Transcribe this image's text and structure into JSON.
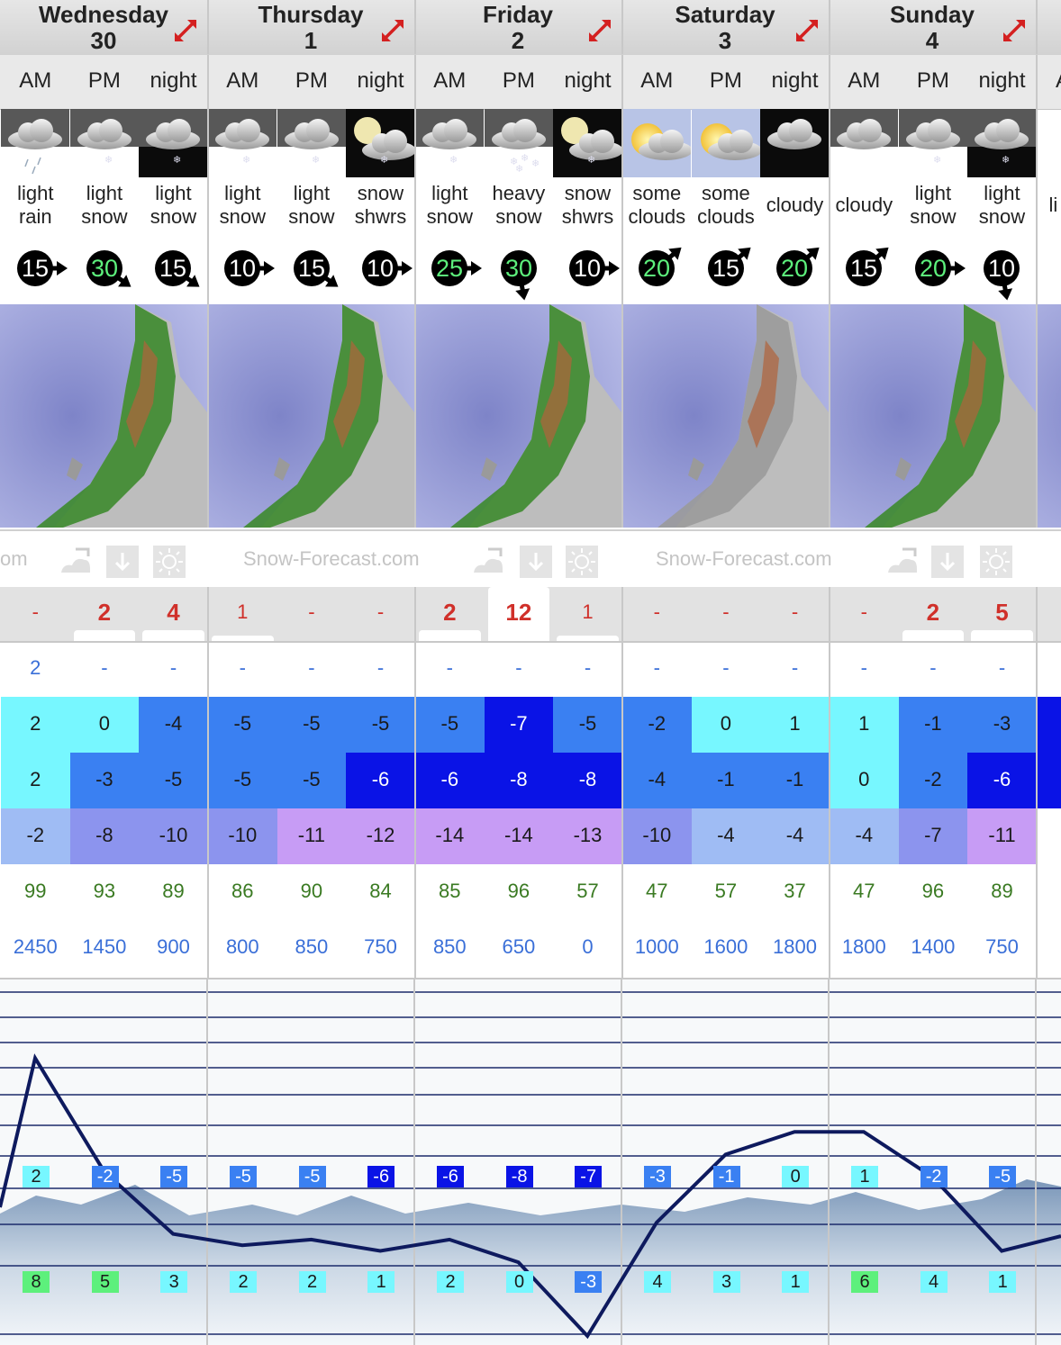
{
  "days": [
    {
      "name": "Wednesday",
      "date": "30",
      "x": 0
    },
    {
      "name": "Thursday",
      "date": "1"
    },
    {
      "name": "Friday",
      "date": "2"
    },
    {
      "name": "Saturday",
      "date": "3"
    },
    {
      "name": "Sunday",
      "date": "4"
    }
  ],
  "partial_day": {
    "period": "A",
    "summary": "li s"
  },
  "periods": [
    {
      "label": "AM",
      "icon": "light-rain-icon",
      "sky": "cloud",
      "summary": [
        "light",
        "rain"
      ],
      "wind_speed": "15",
      "wind_dir": "east",
      "wind_color": "#ffffff",
      "snow": "-",
      "snow_big": false,
      "rain": "2",
      "max_temp": "2",
      "max_color": "#77f7ff",
      "min_temp": "2",
      "min_color": "#77f7ff",
      "chill": "-2",
      "chill_color": "#9fbcf4",
      "humidity": "99",
      "freezing": "2450",
      "chart_temp": "2",
      "chart_temp_color": "#77f7ff",
      "chart_low": "8",
      "chart_low_color": "#5df07c"
    },
    {
      "label": "PM",
      "icon": "light-snow-icon",
      "sky": "cloud",
      "summary": [
        "light",
        "snow"
      ],
      "wind_speed": "30",
      "wind_dir": "southeast",
      "wind_color": "#5df07c",
      "snow": "2",
      "snow_big": true,
      "rain": "-",
      "max_temp": "0",
      "max_color": "#77f7ff",
      "min_temp": "-3",
      "min_color": "#3a80f2",
      "chill": "-8",
      "chill_color": "#8c94ee",
      "humidity": "93",
      "freezing": "1450",
      "chart_temp": "-2",
      "chart_temp_color": "#3a80f2",
      "chart_low": "5",
      "chart_low_color": "#5df07c"
    },
    {
      "label": "night",
      "icon": "light-snow-night-icon",
      "sky": "night",
      "summary": [
        "light",
        "snow"
      ],
      "wind_speed": "15",
      "wind_dir": "southeast",
      "wind_color": "#ffffff",
      "snow": "4",
      "snow_big": true,
      "rain": "-",
      "max_temp": "-4",
      "max_color": "#3a80f2",
      "min_temp": "-5",
      "min_color": "#3a80f2",
      "chill": "-10",
      "chill_color": "#8c94ee",
      "humidity": "89",
      "freezing": "900",
      "chart_temp": "-5",
      "chart_temp_color": "#3a80f2",
      "chart_low": "3",
      "chart_low_color": "#77f7ff"
    },
    {
      "label": "AM",
      "icon": "light-snow-icon",
      "sky": "cloud",
      "summary": [
        "light",
        "snow"
      ],
      "wind_speed": "10",
      "wind_dir": "east",
      "wind_color": "#ffffff",
      "snow": "1",
      "snow_big": false,
      "rain": "-",
      "max_temp": "-5",
      "max_color": "#3a80f2",
      "min_temp": "-5",
      "min_color": "#3a80f2",
      "chill": "-10",
      "chill_color": "#8c94ee",
      "humidity": "86",
      "freezing": "800",
      "chart_temp": "-5",
      "chart_temp_color": "#3a80f2",
      "chart_low": "2",
      "chart_low_color": "#77f7ff"
    },
    {
      "label": "PM",
      "icon": "light-snow-icon",
      "sky": "cloud",
      "summary": [
        "light",
        "snow"
      ],
      "wind_speed": "15",
      "wind_dir": "southeast",
      "wind_color": "#ffffff",
      "snow": "-",
      "snow_big": false,
      "rain": "-",
      "max_temp": "-5",
      "max_color": "#3a80f2",
      "min_temp": "-5",
      "min_color": "#3a80f2",
      "chill": "-11",
      "chill_color": "#c79cf5",
      "humidity": "90",
      "freezing": "850",
      "chart_temp": "-5",
      "chart_temp_color": "#3a80f2",
      "chart_low": "2",
      "chart_low_color": "#77f7ff"
    },
    {
      "label": "night",
      "icon": "snow-showers-night-icon",
      "sky": "moon",
      "summary": [
        "snow",
        "shwrs"
      ],
      "wind_speed": "10",
      "wind_dir": "east",
      "wind_color": "#ffffff",
      "snow": "-",
      "snow_big": false,
      "rain": "-",
      "max_temp": "-5",
      "max_color": "#3a80f2",
      "min_temp": "-6",
      "min_color": "#0a13e6",
      "chill": "-12",
      "chill_color": "#c79cf5",
      "humidity": "84",
      "freezing": "750",
      "chart_temp": "-6",
      "chart_temp_color": "#0a13e6",
      "chart_low": "1",
      "chart_low_color": "#77f7ff"
    },
    {
      "label": "AM",
      "icon": "light-snow-icon",
      "sky": "cloud",
      "summary": [
        "light",
        "snow"
      ],
      "wind_speed": "25",
      "wind_dir": "east",
      "wind_color": "#5df07c",
      "snow": "2",
      "snow_big": true,
      "rain": "-",
      "max_temp": "-5",
      "max_color": "#3a80f2",
      "min_temp": "-6",
      "min_color": "#0a13e6",
      "chill": "-14",
      "chill_color": "#c79cf5",
      "humidity": "85",
      "freezing": "850",
      "chart_temp": "-6",
      "chart_temp_color": "#0a13e6",
      "chart_low": "2",
      "chart_low_color": "#77f7ff"
    },
    {
      "label": "PM",
      "icon": "heavy-snow-icon",
      "sky": "cloud",
      "summary": [
        "heavy",
        "snow"
      ],
      "wind_speed": "30",
      "wind_dir": "south",
      "wind_color": "#5df07c",
      "snow": "12",
      "snow_big": true,
      "rain": "-",
      "max_temp": "-7",
      "max_color": "#0a13e6",
      "min_temp": "-8",
      "min_color": "#0a13e6",
      "chill": "-14",
      "chill_color": "#c79cf5",
      "humidity": "96",
      "freezing": "650",
      "chart_temp": "-8",
      "chart_temp_color": "#0a13e6",
      "chart_low": "0",
      "chart_low_color": "#77f7ff"
    },
    {
      "label": "night",
      "icon": "snow-showers-night-icon",
      "sky": "moon",
      "summary": [
        "snow",
        "shwrs"
      ],
      "wind_speed": "10",
      "wind_dir": "east",
      "wind_color": "#ffffff",
      "snow": "1",
      "snow_big": false,
      "rain": "-",
      "max_temp": "-5",
      "max_color": "#3a80f2",
      "min_temp": "-8",
      "min_color": "#0a13e6",
      "chill": "-13",
      "chill_color": "#c79cf5",
      "humidity": "57",
      "freezing": "0",
      "chart_temp": "-7",
      "chart_temp_color": "#0a13e6",
      "chart_low": "-3",
      "chart_low_color": "#3a80f2"
    },
    {
      "label": "AM",
      "icon": "some-clouds-icon",
      "sky": "sun",
      "summary": [
        "some",
        "clouds"
      ],
      "wind_speed": "20",
      "wind_dir": "northeast",
      "wind_color": "#5df07c",
      "snow": "-",
      "snow_big": false,
      "rain": "-",
      "max_temp": "-2",
      "max_color": "#3a80f2",
      "min_temp": "-4",
      "min_color": "#3a80f2",
      "chill": "-10",
      "chill_color": "#8c94ee",
      "humidity": "47",
      "freezing": "1000",
      "chart_temp": "-3",
      "chart_temp_color": "#3a80f2",
      "chart_low": "4",
      "chart_low_color": "#77f7ff"
    },
    {
      "label": "PM",
      "icon": "some-clouds-icon",
      "sky": "sun",
      "summary": [
        "some",
        "clouds"
      ],
      "wind_speed": "15",
      "wind_dir": "northeast",
      "wind_color": "#ffffff",
      "snow": "-",
      "snow_big": false,
      "rain": "-",
      "max_temp": "0",
      "max_color": "#77f7ff",
      "min_temp": "-1",
      "min_color": "#3a80f2",
      "chill": "-4",
      "chill_color": "#9fbcf4",
      "humidity": "57",
      "freezing": "1600",
      "chart_temp": "-1",
      "chart_temp_color": "#3a80f2",
      "chart_low": "3",
      "chart_low_color": "#77f7ff"
    },
    {
      "label": "night",
      "icon": "cloudy-night-icon",
      "sky": "darkcloud",
      "summary": [
        "cloudy"
      ],
      "wind_speed": "20",
      "wind_dir": "northeast",
      "wind_color": "#5df07c",
      "snow": "-",
      "snow_big": false,
      "rain": "-",
      "max_temp": "1",
      "max_color": "#77f7ff",
      "min_temp": "-1",
      "min_color": "#3a80f2",
      "chill": "-4",
      "chill_color": "#9fbcf4",
      "humidity": "37",
      "freezing": "1800",
      "chart_temp": "0",
      "chart_temp_color": "#77f7ff",
      "chart_low": "1",
      "chart_low_color": "#77f7ff"
    },
    {
      "label": "AM",
      "icon": "cloudy-icon",
      "sky": "cloud",
      "summary": [
        "cloudy"
      ],
      "wind_speed": "15",
      "wind_dir": "northeast",
      "wind_color": "#ffffff",
      "snow": "-",
      "snow_big": false,
      "rain": "-",
      "max_temp": "1",
      "max_color": "#77f7ff",
      "min_temp": "0",
      "min_color": "#77f7ff",
      "chill": "-4",
      "chill_color": "#9fbcf4",
      "humidity": "47",
      "freezing": "1800",
      "chart_temp": "1",
      "chart_temp_color": "#77f7ff",
      "chart_low": "6",
      "chart_low_color": "#5df07c"
    },
    {
      "label": "PM",
      "icon": "light-snow-icon",
      "sky": "cloud",
      "summary": [
        "light",
        "snow"
      ],
      "wind_speed": "20",
      "wind_dir": "east",
      "wind_color": "#5df07c",
      "snow": "2",
      "snow_big": true,
      "rain": "-",
      "max_temp": "-1",
      "max_color": "#3a80f2",
      "min_temp": "-2",
      "min_color": "#3a80f2",
      "chill": "-7",
      "chill_color": "#8c94ee",
      "humidity": "96",
      "freezing": "1400",
      "chart_temp": "-2",
      "chart_temp_color": "#3a80f2",
      "chart_low": "4",
      "chart_low_color": "#77f7ff"
    },
    {
      "label": "night",
      "icon": "light-snow-night-icon",
      "sky": "night",
      "summary": [
        "light",
        "snow"
      ],
      "wind_speed": "10",
      "wind_dir": "south",
      "wind_color": "#ffffff",
      "snow": "5",
      "snow_big": true,
      "rain": "-",
      "max_temp": "-3",
      "max_color": "#3a80f2",
      "min_temp": "-6",
      "min_color": "#0a13e6",
      "chill": "-11",
      "chill_color": "#c79cf5",
      "humidity": "89",
      "freezing": "750",
      "chart_temp": "-5",
      "chart_temp_color": "#3a80f2",
      "chart_low": "1",
      "chart_low_color": "#77f7ff"
    }
  ],
  "brand": {
    "text": "Snow-Forecast.com",
    "partial": "om"
  },
  "colors": {
    "grid_line": "#1b2a6b",
    "temp_line": "#0e1a5e",
    "snow_text": "#d0302a",
    "rain_text": "#3a6fd8",
    "humidity_text": "#3a7a22"
  }
}
